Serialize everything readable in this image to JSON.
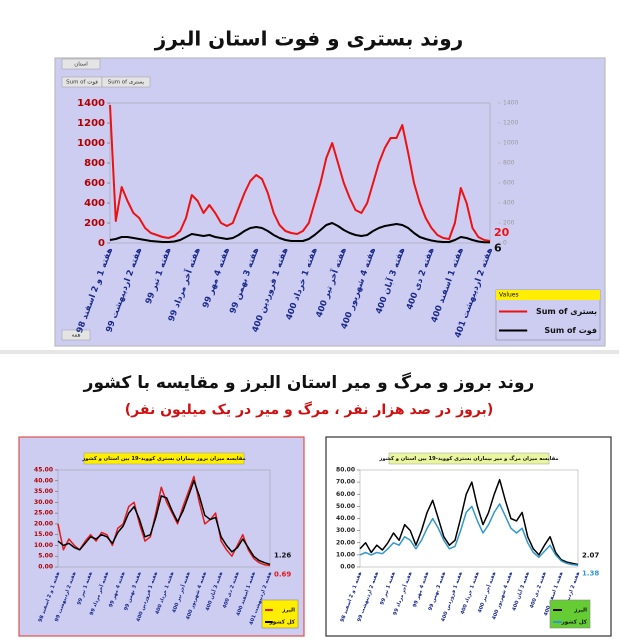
{
  "heading": "روند بروز و مرگ و میر استان البرز و مقایسه با کشور",
  "subheading": "(بروز در صد هزار نفر ، مرگ و میر در یک میلیون نفر)",
  "chart_data": [
    {
      "type": "line",
      "title": "روند بستری و فوت استان البرز",
      "pivot_labels": [
        "استان",
        "Sum of فوت",
        "Sum of بستری",
        "همه"
      ],
      "legend_title": "Values",
      "categories": [
        "هفته 1 و 2 اسفند 98",
        null,
        null,
        null,
        null,
        "هفته 2 اردیبهشت 99",
        null,
        null,
        null,
        null,
        "هفته 1 تیر 99",
        null,
        null,
        null,
        null,
        "هفته آخر مرداد 99",
        null,
        null,
        null,
        null,
        "هفته 4 مهر 99",
        null,
        null,
        null,
        null,
        "هفته 3 بهمن 99",
        null,
        null,
        null,
        null,
        "هفته 1 فروردین 400",
        null,
        null,
        null,
        null,
        "هفته 1 خرداد 400",
        null,
        null,
        null,
        null,
        "هفته آخر تیر 400",
        null,
        null,
        null,
        null,
        "هفته 4 شهریور 400",
        null,
        null,
        null,
        null,
        "هفته 3 آبان 400",
        null,
        null,
        null,
        null,
        "هفته 2 دی 400",
        null,
        null,
        null,
        null,
        "هفته 1 اسفند 400",
        null,
        null,
        null,
        null,
        "هفته 2 اردیبهشت 401"
      ],
      "series": [
        {
          "name": "Sum of بستری",
          "color": "#ee1111",
          "values": [
            1380,
            220,
            560,
            420,
            300,
            250,
            150,
            100,
            80,
            60,
            50,
            70,
            120,
            250,
            480,
            420,
            300,
            380,
            300,
            200,
            170,
            200,
            350,
            500,
            620,
            680,
            640,
            500,
            300,
            180,
            120,
            100,
            90,
            120,
            200,
            400,
            600,
            850,
            1000,
            800,
            600,
            450,
            330,
            300,
            400,
            600,
            800,
            950,
            1050,
            1050,
            1180,
            900,
            600,
            400,
            250,
            150,
            80,
            50,
            40,
            200,
            550,
            400,
            150,
            60,
            30,
            20
          ]
        },
        {
          "name": "Sum of فوت",
          "color": "#000000",
          "values": [
            30,
            40,
            60,
            60,
            50,
            40,
            30,
            20,
            15,
            10,
            10,
            15,
            30,
            60,
            90,
            80,
            70,
            80,
            60,
            50,
            40,
            50,
            80,
            120,
            150,
            160,
            150,
            120,
            80,
            50,
            30,
            20,
            20,
            20,
            40,
            80,
            130,
            180,
            200,
            170,
            130,
            100,
            80,
            70,
            80,
            120,
            150,
            170,
            180,
            190,
            180,
            150,
            100,
            60,
            40,
            25,
            15,
            10,
            10,
            30,
            60,
            50,
            30,
            15,
            8,
            6
          ]
        }
      ],
      "ylim": [
        0,
        1400
      ],
      "yticks": [
        0,
        200,
        400,
        600,
        800,
        1000,
        1200,
        1400
      ],
      "y2lim": [
        0,
        1400
      ],
      "y2ticks": [
        0,
        200,
        400,
        600,
        800,
        1000,
        1200,
        1400
      ],
      "grid": false
    },
    {
      "type": "line",
      "title": "مقایسه میزان بروز بیماران بستری کووید-19 بین استان و کشور",
      "categories": [
        "هفته 1 و 2 اسفند 98",
        null,
        null,
        "هفته 2 اردیبهشت 99",
        null,
        null,
        "هفته 1 تیر 99",
        null,
        null,
        "هفته آخر مرداد 99",
        null,
        null,
        "هفته 4 مهر 99",
        null,
        null,
        "هفته 3 بهمن 99",
        null,
        null,
        "هفته 1 فروردین 400",
        null,
        null,
        "هفته 1 خرداد 400",
        null,
        null,
        "هفته آخر تیر 400",
        null,
        null,
        "هفته 4 شهریور 400",
        null,
        null,
        "هفته 3 آبان 400",
        null,
        null,
        "هفته 2 دی 400",
        null,
        null,
        "هفته 1 اسفند 400",
        null,
        null,
        "هفته 2 اردیبهشت 401"
      ],
      "series": [
        {
          "name": "البرز",
          "color": "#e31a1c",
          "values": [
            20,
            8,
            13,
            10,
            8,
            12,
            15,
            12,
            16,
            15,
            10,
            18,
            20,
            28,
            30,
            20,
            12,
            14,
            25,
            37,
            30,
            25,
            20,
            28,
            35,
            42,
            30,
            20,
            22,
            25,
            12,
            8,
            5,
            10,
            15,
            8,
            4,
            2,
            1,
            0.69
          ]
        },
        {
          "name": "کل کشور",
          "color": "#000000",
          "values": [
            12,
            10,
            11,
            9,
            8,
            11,
            14,
            13,
            15,
            14,
            11,
            16,
            19,
            25,
            28,
            22,
            14,
            15,
            23,
            33,
            32,
            26,
            21,
            26,
            33,
            40,
            33,
            24,
            22,
            23,
            14,
            10,
            7,
            9,
            13,
            9,
            5,
            3,
            2,
            1.26
          ]
        }
      ],
      "ylim": [
        0,
        45
      ],
      "yticks": [
        {
          "value": 0,
          "label": "0.00"
        },
        {
          "value": 5,
          "label": "5.00"
        },
        {
          "value": 10,
          "label": "10.00"
        },
        {
          "value": 15,
          "label": "15.00"
        },
        {
          "value": 20,
          "label": "20.00"
        },
        {
          "value": 25,
          "label": "25.00"
        },
        {
          "value": 30,
          "label": "30.00"
        },
        {
          "value": 35,
          "label": "35.00"
        },
        {
          "value": 40,
          "label": "40.00"
        },
        {
          "value": 45,
          "label": "45.00"
        }
      ],
      "grid": false
    },
    {
      "type": "line",
      "title": "مقایسه میزان مرگ و میر بیماران بستری کووید-19 بین استان و کشور",
      "categories": [
        "هفته 1 و 2 اسفند 98",
        null,
        null,
        "هفته 2 اردیبهشت 99",
        null,
        null,
        "هفته 1 تیر 99",
        null,
        null,
        "هفته آخر مرداد 99",
        null,
        null,
        "هفته 4 مهر 99",
        null,
        null,
        "هفته 3 بهمن 99",
        null,
        null,
        "هفته 1 فروردین 400",
        null,
        null,
        "هفته 1 خرداد 400",
        null,
        null,
        "هفته آخر تیر 400",
        null,
        null,
        "هفته 4 شهریور 400",
        null,
        null,
        "هفته 3 آبان 400",
        null,
        null,
        "هفته 2 دی 400",
        null,
        null,
        "هفته 1 اسفند 400",
        null,
        null,
        "هفته 2 اردیبهشت 401"
      ],
      "series": [
        {
          "name": "البرز",
          "color": "#000000",
          "values": [
            15,
            20,
            12,
            18,
            14,
            20,
            28,
            22,
            35,
            30,
            18,
            30,
            45,
            55,
            40,
            25,
            18,
            22,
            40,
            60,
            70,
            50,
            35,
            45,
            60,
            72,
            55,
            40,
            38,
            45,
            25,
            15,
            10,
            18,
            25,
            12,
            6,
            4,
            3,
            2.07
          ]
        },
        {
          "name": "کل کشور",
          "color": "#3399cc",
          "values": [
            10,
            12,
            10,
            12,
            11,
            15,
            20,
            18,
            25,
            22,
            15,
            22,
            32,
            40,
            32,
            22,
            15,
            17,
            30,
            45,
            50,
            38,
            28,
            35,
            45,
            52,
            42,
            32,
            28,
            32,
            20,
            12,
            8,
            13,
            18,
            10,
            5,
            3,
            2,
            1.38
          ]
        }
      ],
      "ylim": [
        0,
        80
      ],
      "yticks": [
        {
          "value": 0,
          "label": "0.00"
        },
        {
          "value": 10,
          "label": "10.00"
        },
        {
          "value": 20,
          "label": "20.00"
        },
        {
          "value": 30,
          "label": "30.00"
        },
        {
          "value": 40,
          "label": "40.00"
        },
        {
          "value": 50,
          "label": "50.00"
        },
        {
          "value": 60,
          "label": "60.00"
        },
        {
          "value": 70,
          "label": "70.00"
        },
        {
          "value": 80,
          "label": "80.00"
        }
      ],
      "grid": false
    }
  ]
}
